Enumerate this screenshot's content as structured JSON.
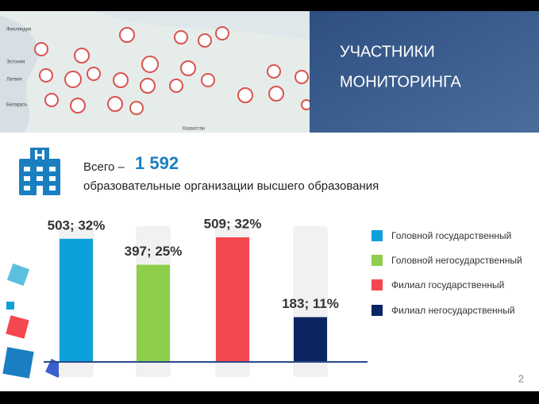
{
  "header": {
    "title_lines": [
      "УЧАСТНИКИ",
      "МОНИТОРИНГА"
    ]
  },
  "map_labels": [
    "Финляндия",
    "Эстония",
    "Латвия",
    "Беларусь",
    "Казахстан"
  ],
  "summary": {
    "prefix": "Всего –",
    "total": "1 592",
    "description": "образовательные организации высшего образования"
  },
  "chart_data": {
    "type": "bar",
    "categories": [
      "Головной государственный",
      "Головной негосударственный",
      "Филиал государственный",
      "Филиал негосударственный"
    ],
    "values": [
      503,
      397,
      509,
      183
    ],
    "value_labels": [
      "503; 32%",
      "397; 25%",
      "509; 32%",
      "183; 11%"
    ],
    "colors": [
      "#0ea0db",
      "#8dcf4a",
      "#f5474f",
      "#0a2561"
    ]
  },
  "page_number": "2"
}
